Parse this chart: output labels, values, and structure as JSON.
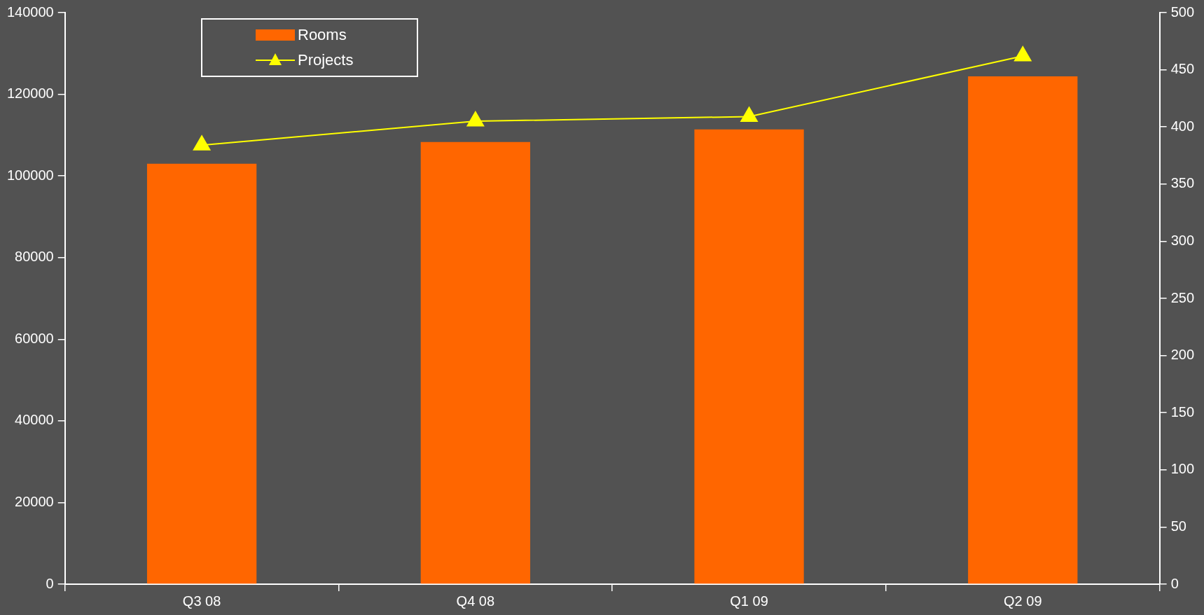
{
  "chart_data": {
    "type": "bar",
    "categories": [
      "Q3 08",
      "Q4 08",
      "Q1 09",
      "Q2 09"
    ],
    "series": [
      {
        "name": "Rooms",
        "color": "#ff6600",
        "values": [
          103000,
          108300,
          111400,
          124400
        ]
      },
      {
        "name": "Projects",
        "type": "line",
        "axis": "y2",
        "color": "#ffff00",
        "marker": "triangle",
        "values": [
          384,
          405,
          409,
          462
        ]
      }
    ],
    "ylim": [
      0,
      140000
    ],
    "yticks": [
      0,
      20000,
      40000,
      60000,
      80000,
      100000,
      120000,
      140000
    ],
    "y2lim": [
      0,
      500
    ],
    "y2ticks": [
      0,
      50,
      100,
      150,
      200,
      250,
      300,
      350,
      400,
      450,
      500
    ],
    "grid": false,
    "legend": "top left"
  }
}
